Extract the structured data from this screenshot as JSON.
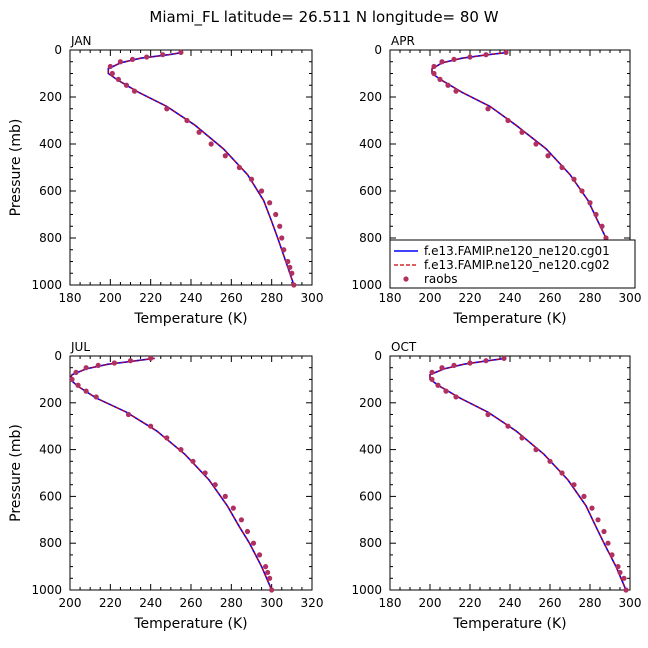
{
  "page_title": "Miami_FL  latitude= 26.511 N longitude= 80 W",
  "colors": {
    "model1": "#0000ff",
    "model2": "#cc0000",
    "raobs": "#b03060"
  },
  "legend": {
    "placement": "lower-right of APR panel",
    "entries": [
      "f.e13.FAMIP.ne120_ne120.cg01",
      "f.e13.FAMIP.ne120_ne120.cg02",
      "raobs"
    ]
  },
  "chart_data": [
    {
      "type": "line",
      "title": "JAN",
      "xlabel": "Temperature (K)",
      "ylabel": "Pressure (mb)",
      "xlim": [
        180,
        300
      ],
      "ylim": [
        1000,
        0
      ],
      "y_inverted": true,
      "xticks": [
        "180",
        "200",
        "220",
        "240",
        "260",
        "280",
        "300"
      ],
      "yticks": [
        "0",
        "200",
        "400",
        "600",
        "800",
        "1000"
      ],
      "series": [
        {
          "name": "f.e13.FAMIP.ne120_ne120.cg01",
          "style": "solid",
          "x": [
            236,
            229,
            215,
            205,
            199,
            199,
            204,
            214,
            228,
            242,
            256,
            268,
            276,
            280,
            283,
            287,
            291
          ],
          "y": [
            10,
            20,
            35,
            55,
            80,
            100,
            130,
            180,
            240,
            320,
            420,
            530,
            640,
            730,
            800,
            900,
            1000
          ]
        },
        {
          "name": "f.e13.FAMIP.ne120_ne120.cg02",
          "style": "dashed",
          "x": [
            236,
            229,
            215,
            205,
            199,
            199,
            204,
            214,
            228,
            242,
            256,
            268,
            276,
            280,
            283,
            287,
            291
          ],
          "y": [
            10,
            20,
            35,
            55,
            80,
            100,
            130,
            180,
            240,
            320,
            420,
            530,
            640,
            730,
            800,
            900,
            1000
          ]
        },
        {
          "name": "raobs",
          "style": "dots",
          "x": [
            235,
            226,
            218,
            211,
            205,
            200,
            201,
            204,
            208,
            212,
            228,
            238,
            244,
            250,
            257,
            264,
            270,
            275,
            279,
            282,
            284,
            285,
            286,
            288,
            289,
            290,
            291
          ],
          "y": [
            10,
            20,
            30,
            40,
            50,
            70,
            100,
            125,
            150,
            175,
            250,
            300,
            350,
            400,
            450,
            500,
            550,
            600,
            650,
            700,
            750,
            800,
            850,
            900,
            925,
            950,
            1000
          ]
        }
      ]
    },
    {
      "type": "line",
      "title": "APR",
      "xlabel": "Temperature (K)",
      "ylabel": "",
      "xlim": [
        180,
        300
      ],
      "ylim": [
        1000,
        0
      ],
      "y_inverted": true,
      "xticks": [
        "180",
        "200",
        "220",
        "240",
        "260",
        "280",
        "300"
      ],
      "yticks": [
        "0",
        "200",
        "400",
        "600",
        "800",
        "1000"
      ],
      "series": [
        {
          "name": "f.e13.FAMIP.ne120_ne120.cg01",
          "style": "solid",
          "x": [
            239,
            229,
            216,
            206,
            201,
            201,
            206,
            216,
            230,
            243,
            258,
            270,
            279,
            284,
            288,
            292,
            295
          ],
          "y": [
            10,
            20,
            35,
            55,
            80,
            100,
            130,
            180,
            240,
            320,
            420,
            530,
            640,
            730,
            800,
            900,
            1000
          ]
        },
        {
          "name": "f.e13.FAMIP.ne120_ne120.cg02",
          "style": "dashed",
          "x": [
            239,
            229,
            216,
            206,
            201,
            201,
            206,
            216,
            230,
            243,
            258,
            270,
            279,
            284,
            288,
            292,
            295
          ],
          "y": [
            10,
            20,
            35,
            55,
            80,
            100,
            130,
            180,
            240,
            320,
            420,
            530,
            640,
            730,
            800,
            900,
            1000
          ]
        },
        {
          "name": "raobs",
          "style": "dots",
          "x": [
            238,
            228,
            220,
            212,
            206,
            202,
            202,
            205,
            209,
            213,
            229,
            239,
            246,
            253,
            259,
            266,
            272,
            276,
            280,
            283,
            286,
            288,
            290,
            292,
            293,
            294,
            295
          ],
          "y": [
            10,
            20,
            30,
            40,
            50,
            70,
            100,
            125,
            150,
            175,
            250,
            300,
            350,
            400,
            450,
            500,
            550,
            600,
            650,
            700,
            750,
            800,
            850,
            900,
            925,
            950,
            1000
          ]
        }
      ]
    },
    {
      "type": "line",
      "title": "JUL",
      "xlabel": "Temperature (K)",
      "ylabel": "Pressure (mb)",
      "xlim": [
        200,
        320
      ],
      "ylim": [
        1000,
        0
      ],
      "y_inverted": true,
      "xticks": [
        "200",
        "220",
        "240",
        "260",
        "280",
        "300",
        "320"
      ],
      "yticks": [
        "0",
        "200",
        "400",
        "600",
        "800",
        "1000"
      ],
      "series": [
        {
          "name": "f.e13.FAMIP.ne120_ne120.cg01",
          "style": "solid",
          "x": [
            242,
            233,
            219,
            208,
            201,
            200,
            204,
            213,
            228,
            243,
            257,
            269,
            278,
            284,
            289,
            295,
            300
          ],
          "y": [
            10,
            20,
            35,
            55,
            80,
            100,
            130,
            180,
            240,
            320,
            420,
            530,
            640,
            730,
            800,
            900,
            1000
          ]
        },
        {
          "name": "f.e13.FAMIP.ne120_ne120.cg02",
          "style": "dashed",
          "x": [
            242,
            233,
            219,
            208,
            201,
            200,
            204,
            213,
            228,
            243,
            257,
            269,
            278,
            284,
            289,
            295,
            300
          ],
          "y": [
            10,
            20,
            35,
            55,
            80,
            100,
            130,
            180,
            240,
            320,
            420,
            530,
            640,
            730,
            800,
            900,
            1000
          ]
        },
        {
          "name": "raobs",
          "style": "dots",
          "x": [
            240,
            230,
            222,
            214,
            208,
            203,
            201,
            204,
            208,
            213,
            229,
            240,
            248,
            255,
            261,
            267,
            272,
            277,
            281,
            285,
            288,
            291,
            294,
            297,
            298,
            299,
            300
          ],
          "y": [
            10,
            20,
            30,
            40,
            50,
            70,
            100,
            125,
            150,
            175,
            250,
            300,
            350,
            400,
            450,
            500,
            550,
            600,
            650,
            700,
            750,
            800,
            850,
            900,
            925,
            950,
            1000
          ]
        }
      ]
    },
    {
      "type": "line",
      "title": "OCT",
      "xlabel": "Temperature (K)",
      "ylabel": "",
      "xlim": [
        180,
        300
      ],
      "ylim": [
        1000,
        0
      ],
      "y_inverted": true,
      "xticks": [
        "180",
        "200",
        "220",
        "240",
        "260",
        "280",
        "300"
      ],
      "yticks": [
        "0",
        "200",
        "400",
        "600",
        "800",
        "1000"
      ],
      "series": [
        {
          "name": "f.e13.FAMIP.ne120_ne120.cg01",
          "style": "solid",
          "x": [
            238,
            229,
            217,
            207,
            200,
            200,
            205,
            215,
            229,
            243,
            257,
            269,
            278,
            283,
            287,
            293,
            298
          ],
          "y": [
            10,
            20,
            35,
            55,
            80,
            100,
            130,
            180,
            240,
            320,
            420,
            530,
            640,
            730,
            800,
            900,
            1000
          ]
        },
        {
          "name": "f.e13.FAMIP.ne120_ne120.cg02",
          "style": "dashed",
          "x": [
            238,
            229,
            217,
            207,
            200,
            200,
            205,
            215,
            229,
            243,
            257,
            269,
            278,
            283,
            287,
            293,
            298
          ],
          "y": [
            10,
            20,
            35,
            55,
            80,
            100,
            130,
            180,
            240,
            320,
            420,
            530,
            640,
            730,
            800,
            900,
            1000
          ]
        },
        {
          "name": "raobs",
          "style": "dots",
          "x": [
            237,
            228,
            220,
            212,
            206,
            201,
            201,
            204,
            208,
            213,
            229,
            239,
            246,
            253,
            260,
            266,
            272,
            277,
            281,
            284,
            287,
            289,
            291,
            294,
            295,
            297,
            298
          ],
          "y": [
            10,
            20,
            30,
            40,
            50,
            70,
            100,
            125,
            150,
            175,
            250,
            300,
            350,
            400,
            450,
            500,
            550,
            600,
            650,
            700,
            750,
            800,
            850,
            900,
            925,
            950,
            1000
          ]
        }
      ]
    }
  ]
}
